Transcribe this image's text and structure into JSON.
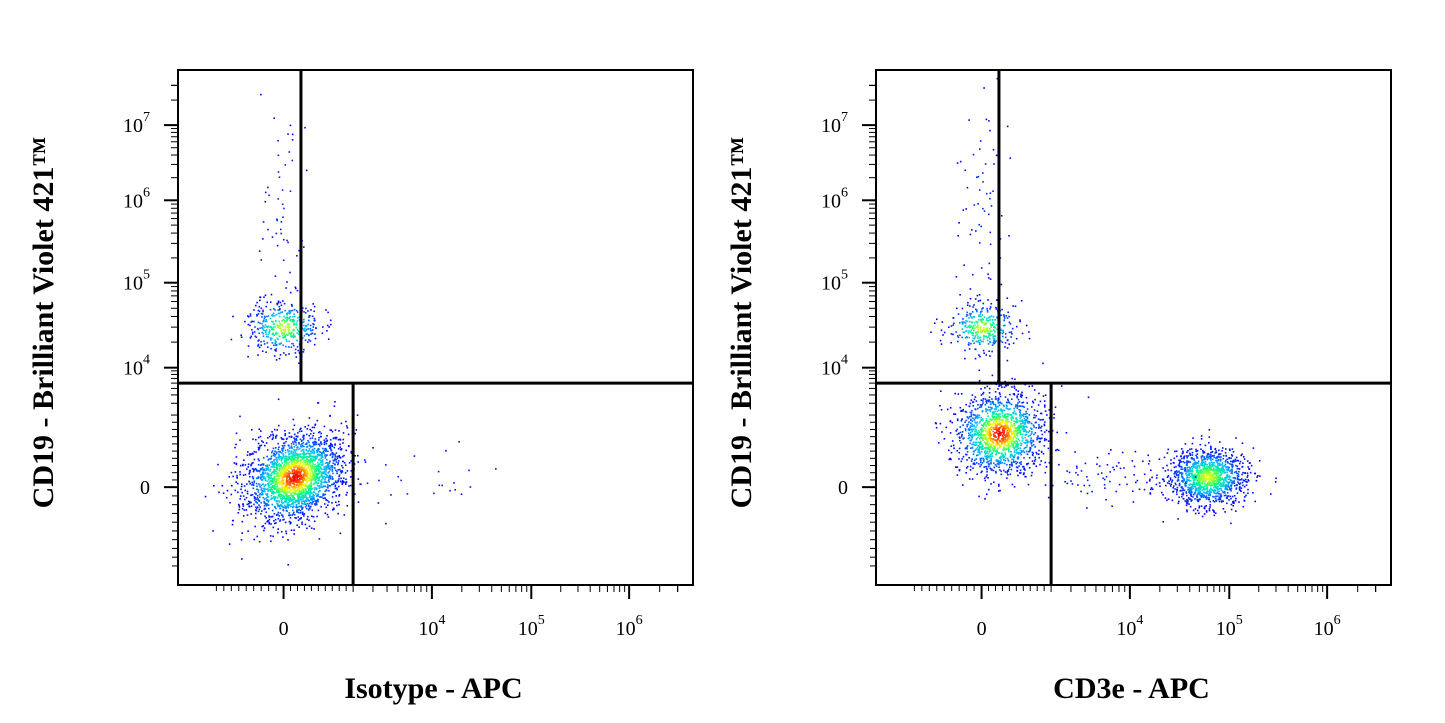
{
  "chart_data": [
    {
      "type": "scatter",
      "xlabel": "Isotype - APC",
      "ylabel": "CD19 - Brilliant Violet 421™",
      "x_ticks": [
        {
          "base": "0",
          "exp": ""
        },
        {
          "base": "10",
          "exp": "4"
        },
        {
          "base": "10",
          "exp": "5"
        },
        {
          "base": "10",
          "exp": "6"
        }
      ],
      "y_ticks": [
        {
          "base": "0",
          "exp": ""
        },
        {
          "base": "10",
          "exp": "4"
        },
        {
          "base": "10",
          "exp": "5"
        },
        {
          "base": "10",
          "exp": "6"
        },
        {
          "base": "10",
          "exp": "7"
        }
      ],
      "scale": "biexponential",
      "quadrant_gates": {
        "x": 2000,
        "x_upper": 500,
        "y": 6000
      },
      "populations": [
        {
          "name": "CD19- double negative",
          "x_center": 300,
          "y_center": 300,
          "events": 2400,
          "peak_density": "high"
        },
        {
          "name": "CD19+ B cells",
          "x_center": 0,
          "y_center": 30000,
          "events": 420,
          "peak_density": "medium"
        },
        {
          "name": "CD19+ bright tail",
          "x_center": 0,
          "y_center": 1000000,
          "events": 60,
          "peak_density": "low"
        },
        {
          "name": "sparse APC+ events",
          "x_center": 6000,
          "y_center": 300,
          "events": 25,
          "peak_density": "low"
        }
      ],
      "density_colormap": [
        "#0000ff",
        "#00bfff",
        "#00ff80",
        "#ffff00",
        "#ff0000"
      ]
    },
    {
      "type": "scatter",
      "xlabel": "CD3e - APC",
      "ylabel": "CD19 - Brilliant Violet 421™",
      "x_ticks": [
        {
          "base": "0",
          "exp": ""
        },
        {
          "base": "10",
          "exp": "4"
        },
        {
          "base": "10",
          "exp": "5"
        },
        {
          "base": "10",
          "exp": "6"
        }
      ],
      "y_ticks": [
        {
          "base": "0",
          "exp": ""
        },
        {
          "base": "10",
          "exp": "4"
        },
        {
          "base": "10",
          "exp": "5"
        },
        {
          "base": "10",
          "exp": "6"
        },
        {
          "base": "10",
          "exp": "7"
        }
      ],
      "scale": "biexponential",
      "quadrant_gates": {
        "x": 2000,
        "x_upper": 500,
        "y": 6000
      },
      "populations": [
        {
          "name": "CD19- CD3e- cells",
          "x_center": 500,
          "y_center": 1500,
          "events": 1500,
          "peak_density": "high"
        },
        {
          "name": "CD3e+ T cells",
          "x_center": 60000,
          "y_center": 300,
          "events": 1300,
          "peak_density": "medium"
        },
        {
          "name": "CD19+ B cells",
          "x_center": 0,
          "y_center": 30000,
          "events": 350,
          "peak_density": "medium"
        },
        {
          "name": "CD19+ bright tail",
          "x_center": 0,
          "y_center": 1000000,
          "events": 70,
          "peak_density": "low"
        },
        {
          "name": "sparse bridging events",
          "x_center": 5000,
          "y_center": 300,
          "events": 90,
          "peak_density": "low"
        }
      ],
      "density_colormap": [
        "#0000ff",
        "#00bfff",
        "#00ff80",
        "#ffff00",
        "#ff0000"
      ]
    }
  ]
}
